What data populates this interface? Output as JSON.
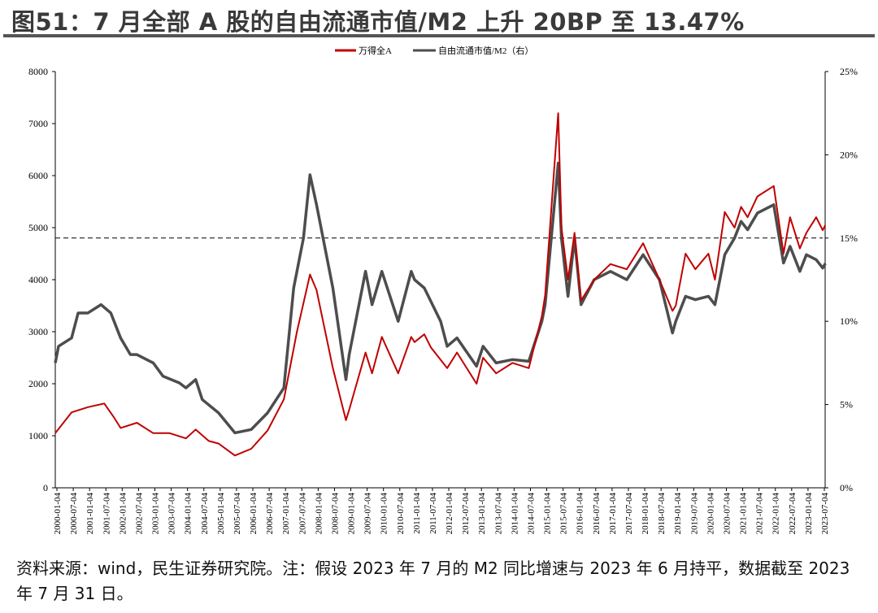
{
  "title": "图51：7 月全部 A 股的自由流通市值/M2 上升 20BP 至 13.47%",
  "footer": "资料来源：wind，民生证券研究院。注：假设 2023 年 7 月的 M2 同比增速与 2023 年 6 月持平，数据截至 2023 年 7 月 31 日。",
  "chart_data": {
    "type": "line",
    "title": "",
    "legend": [
      "万得全A",
      "自由流通市值/M2（右）"
    ],
    "legend_position": "top-center",
    "colors": {
      "wind_a": "#c00000",
      "ratio": "#4d4d4d",
      "threshold": "#000000"
    },
    "x_ticks": [
      "2000-01-04",
      "2000-07-04",
      "2001-01-04",
      "2001-07-04",
      "2002-01-04",
      "2002-07-04",
      "2003-01-04",
      "2003-07-04",
      "2004-01-04",
      "2004-07-04",
      "2005-01-04",
      "2005-07-04",
      "2006-01-04",
      "2006-07-04",
      "2007-01-04",
      "2007-07-04",
      "2008-01-04",
      "2008-07-04",
      "2009-01-04",
      "2009-07-04",
      "2010-01-04",
      "2010-07-04",
      "2011-01-04",
      "2011-07-04",
      "2012-01-04",
      "2012-07-04",
      "2013-01-04",
      "2013-07-04",
      "2014-01-04",
      "2014-07-04",
      "2015-01-04",
      "2015-07-04",
      "2016-01-04",
      "2016-07-04",
      "2017-01-04",
      "2017-07-04",
      "2018-01-04",
      "2018-07-04",
      "2019-01-04",
      "2019-07-04",
      "2020-01-04",
      "2020-07-04",
      "2021-01-04",
      "2021-07-04",
      "2022-01-04",
      "2022-07-04",
      "2023-01-04",
      "2023-07-04"
    ],
    "y_left": {
      "ticks": [
        "0",
        "1000",
        "2000",
        "3000",
        "4000",
        "5000",
        "6000",
        "7000",
        "8000"
      ],
      "ylim": [
        0,
        8000
      ]
    },
    "y_right": {
      "ticks": [
        "0%",
        "5%",
        "10%",
        "15%",
        "20%",
        "25%"
      ],
      "ylim": [
        0,
        25
      ]
    },
    "threshold_right": 15,
    "series": [
      {
        "name": "万得全A",
        "axis": "left",
        "x": [
          2000.0,
          2000.5,
          2001.0,
          2001.5,
          2001.8,
          2002.0,
          2002.5,
          2003.0,
          2003.5,
          2004.0,
          2004.3,
          2004.7,
          2005.0,
          2005.5,
          2006.0,
          2006.5,
          2007.0,
          2007.4,
          2007.8,
          2008.0,
          2008.5,
          2008.9,
          2009.0,
          2009.5,
          2009.7,
          2010.0,
          2010.5,
          2010.9,
          2011.0,
          2011.3,
          2011.5,
          2012.0,
          2012.3,
          2012.9,
          2013.1,
          2013.5,
          2014.0,
          2014.5,
          2014.9,
          2015.0,
          2015.4,
          2015.5,
          2015.7,
          2015.9,
          2016.1,
          2016.5,
          2017.0,
          2017.5,
          2018.0,
          2018.5,
          2018.9,
          2019.0,
          2019.3,
          2019.6,
          2020.0,
          2020.2,
          2020.5,
          2020.8,
          2021.0,
          2021.2,
          2021.5,
          2022.0,
          2022.3,
          2022.5,
          2022.8,
          2023.0,
          2023.3,
          2023.5,
          2023.58
        ],
        "values": [
          1050,
          1450,
          1550,
          1620,
          1350,
          1150,
          1250,
          1050,
          1050,
          950,
          1120,
          900,
          850,
          620,
          750,
          1100,
          1700,
          3000,
          4100,
          3800,
          2300,
          1300,
          1500,
          2600,
          2200,
          2900,
          2200,
          2900,
          2800,
          2950,
          2700,
          2300,
          2600,
          2000,
          2500,
          2200,
          2400,
          2300,
          3300,
          3700,
          7200,
          5000,
          4000,
          4900,
          3600,
          4000,
          4300,
          4200,
          4700,
          4000,
          3400,
          3500,
          4500,
          4200,
          4500,
          4000,
          5300,
          5000,
          5400,
          5200,
          5600,
          5800,
          4500,
          5200,
          4600,
          4900,
          5200,
          4950,
          5050
        ]
      },
      {
        "name": "自由流通市值/M2（右）",
        "axis": "right",
        "x": [
          2000.0,
          2000.1,
          2000.5,
          2000.7,
          2001.0,
          2001.4,
          2001.7,
          2002.0,
          2002.3,
          2002.5,
          2003.0,
          2003.3,
          2003.8,
          2004.0,
          2004.3,
          2004.5,
          2005.0,
          2005.5,
          2006.0,
          2006.5,
          2007.0,
          2007.3,
          2007.6,
          2007.8,
          2008.0,
          2008.2,
          2008.5,
          2008.9,
          2009.0,
          2009.5,
          2009.7,
          2010.0,
          2010.5,
          2010.9,
          2011.0,
          2011.3,
          2011.8,
          2012.0,
          2012.3,
          2012.9,
          2013.1,
          2013.5,
          2014.0,
          2014.5,
          2014.9,
          2015.0,
          2015.4,
          2015.5,
          2015.7,
          2015.9,
          2016.1,
          2016.5,
          2017.0,
          2017.5,
          2018.0,
          2018.5,
          2018.9,
          2019.0,
          2019.3,
          2019.6,
          2020.0,
          2020.2,
          2020.5,
          2020.8,
          2021.0,
          2021.2,
          2021.5,
          2022.0,
          2022.3,
          2022.5,
          2022.8,
          2023.0,
          2023.3,
          2023.5,
          2023.58
        ],
        "values": [
          7.5,
          8.5,
          9,
          10.5,
          10.5,
          11,
          10.5,
          9,
          8,
          8,
          7.5,
          6.7,
          6.3,
          6,
          6.5,
          5.3,
          4.5,
          3.3,
          3.5,
          4.5,
          6,
          12,
          15,
          18.8,
          17,
          15,
          12,
          6.5,
          8,
          13,
          11,
          13,
          10,
          13,
          12.5,
          12,
          10,
          8.5,
          9,
          7.3,
          8.5,
          7.5,
          7.7,
          7.6,
          10,
          11,
          19.5,
          15,
          11.5,
          15,
          11,
          12.5,
          13,
          12.5,
          14,
          12.5,
          9.3,
          10,
          11.5,
          11.3,
          11.5,
          11,
          14,
          15,
          16,
          15.5,
          16.5,
          17,
          13.5,
          14.5,
          13,
          14,
          13.7,
          13.2,
          13.47
        ]
      }
    ]
  }
}
